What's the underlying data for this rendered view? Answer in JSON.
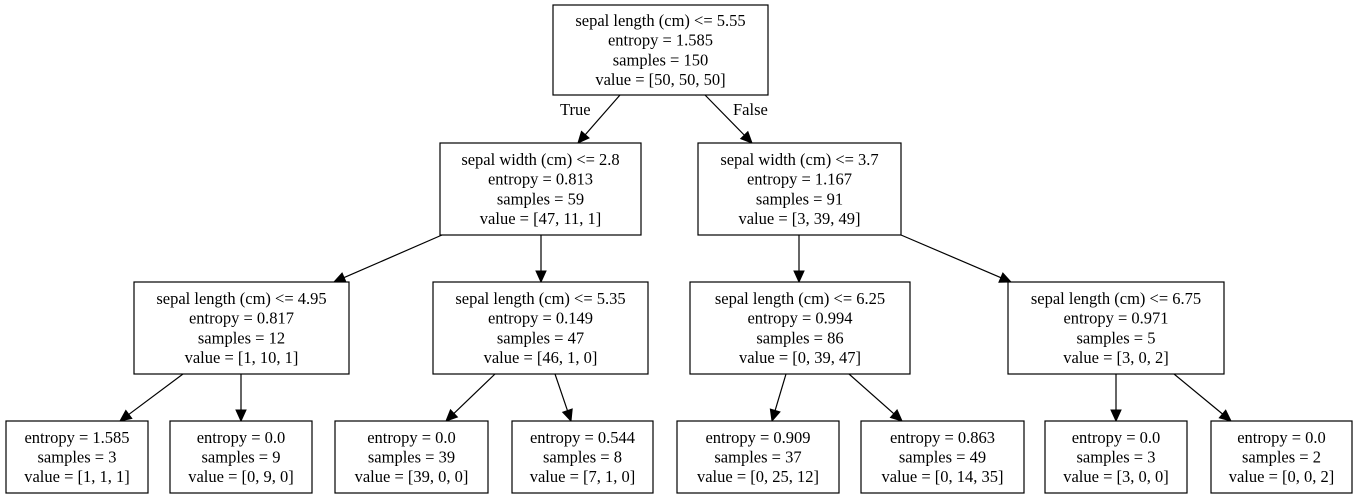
{
  "tree": {
    "true_label": "True",
    "false_label": "False",
    "nodes": [
      {
        "id": "n0",
        "lines": [
          "sepal length (cm) <= 5.55",
          "entropy = 1.585",
          "samples = 150",
          "value = [50, 50, 50]"
        ]
      },
      {
        "id": "n1",
        "lines": [
          "sepal width (cm) <= 2.8",
          "entropy = 0.813",
          "samples = 59",
          "value = [47, 11, 1]"
        ]
      },
      {
        "id": "n2",
        "lines": [
          "sepal width (cm) <= 3.7",
          "entropy = 1.167",
          "samples = 91",
          "value = [3, 39, 49]"
        ]
      },
      {
        "id": "n3",
        "lines": [
          "sepal length (cm) <= 4.95",
          "entropy = 0.817",
          "samples = 12",
          "value = [1, 10, 1]"
        ]
      },
      {
        "id": "n4",
        "lines": [
          "sepal length (cm) <= 5.35",
          "entropy = 0.149",
          "samples = 47",
          "value = [46, 1, 0]"
        ]
      },
      {
        "id": "n5",
        "lines": [
          "sepal length (cm) <= 6.25",
          "entropy = 0.994",
          "samples = 86",
          "value = [0, 39, 47]"
        ]
      },
      {
        "id": "n6",
        "lines": [
          "sepal length (cm) <= 6.75",
          "entropy = 0.971",
          "samples = 5",
          "value = [3, 0, 2]"
        ]
      },
      {
        "id": "n7",
        "lines": [
          "entropy = 1.585",
          "samples = 3",
          "value = [1, 1, 1]"
        ]
      },
      {
        "id": "n8",
        "lines": [
          "entropy = 0.0",
          "samples = 9",
          "value = [0, 9, 0]"
        ]
      },
      {
        "id": "n9",
        "lines": [
          "entropy = 0.0",
          "samples = 39",
          "value = [39, 0, 0]"
        ]
      },
      {
        "id": "n10",
        "lines": [
          "entropy = 0.544",
          "samples = 8",
          "value = [7, 1, 0]"
        ]
      },
      {
        "id": "n11",
        "lines": [
          "entropy = 0.909",
          "samples = 37",
          "value = [0, 25, 12]"
        ]
      },
      {
        "id": "n12",
        "lines": [
          "entropy = 0.863",
          "samples = 49",
          "value = [0, 14, 35]"
        ]
      },
      {
        "id": "n13",
        "lines": [
          "entropy = 0.0",
          "samples = 3",
          "value = [3, 0, 0]"
        ]
      },
      {
        "id": "n14",
        "lines": [
          "entropy = 0.0",
          "samples = 2",
          "value = [0, 0, 2]"
        ]
      }
    ],
    "edges": [
      [
        "n0",
        "n1"
      ],
      [
        "n0",
        "n2"
      ],
      [
        "n1",
        "n3"
      ],
      [
        "n1",
        "n4"
      ],
      [
        "n2",
        "n5"
      ],
      [
        "n2",
        "n6"
      ],
      [
        "n3",
        "n7"
      ],
      [
        "n3",
        "n8"
      ],
      [
        "n4",
        "n9"
      ],
      [
        "n4",
        "n10"
      ],
      [
        "n5",
        "n11"
      ],
      [
        "n5",
        "n12"
      ],
      [
        "n6",
        "n13"
      ],
      [
        "n6",
        "n14"
      ]
    ]
  }
}
